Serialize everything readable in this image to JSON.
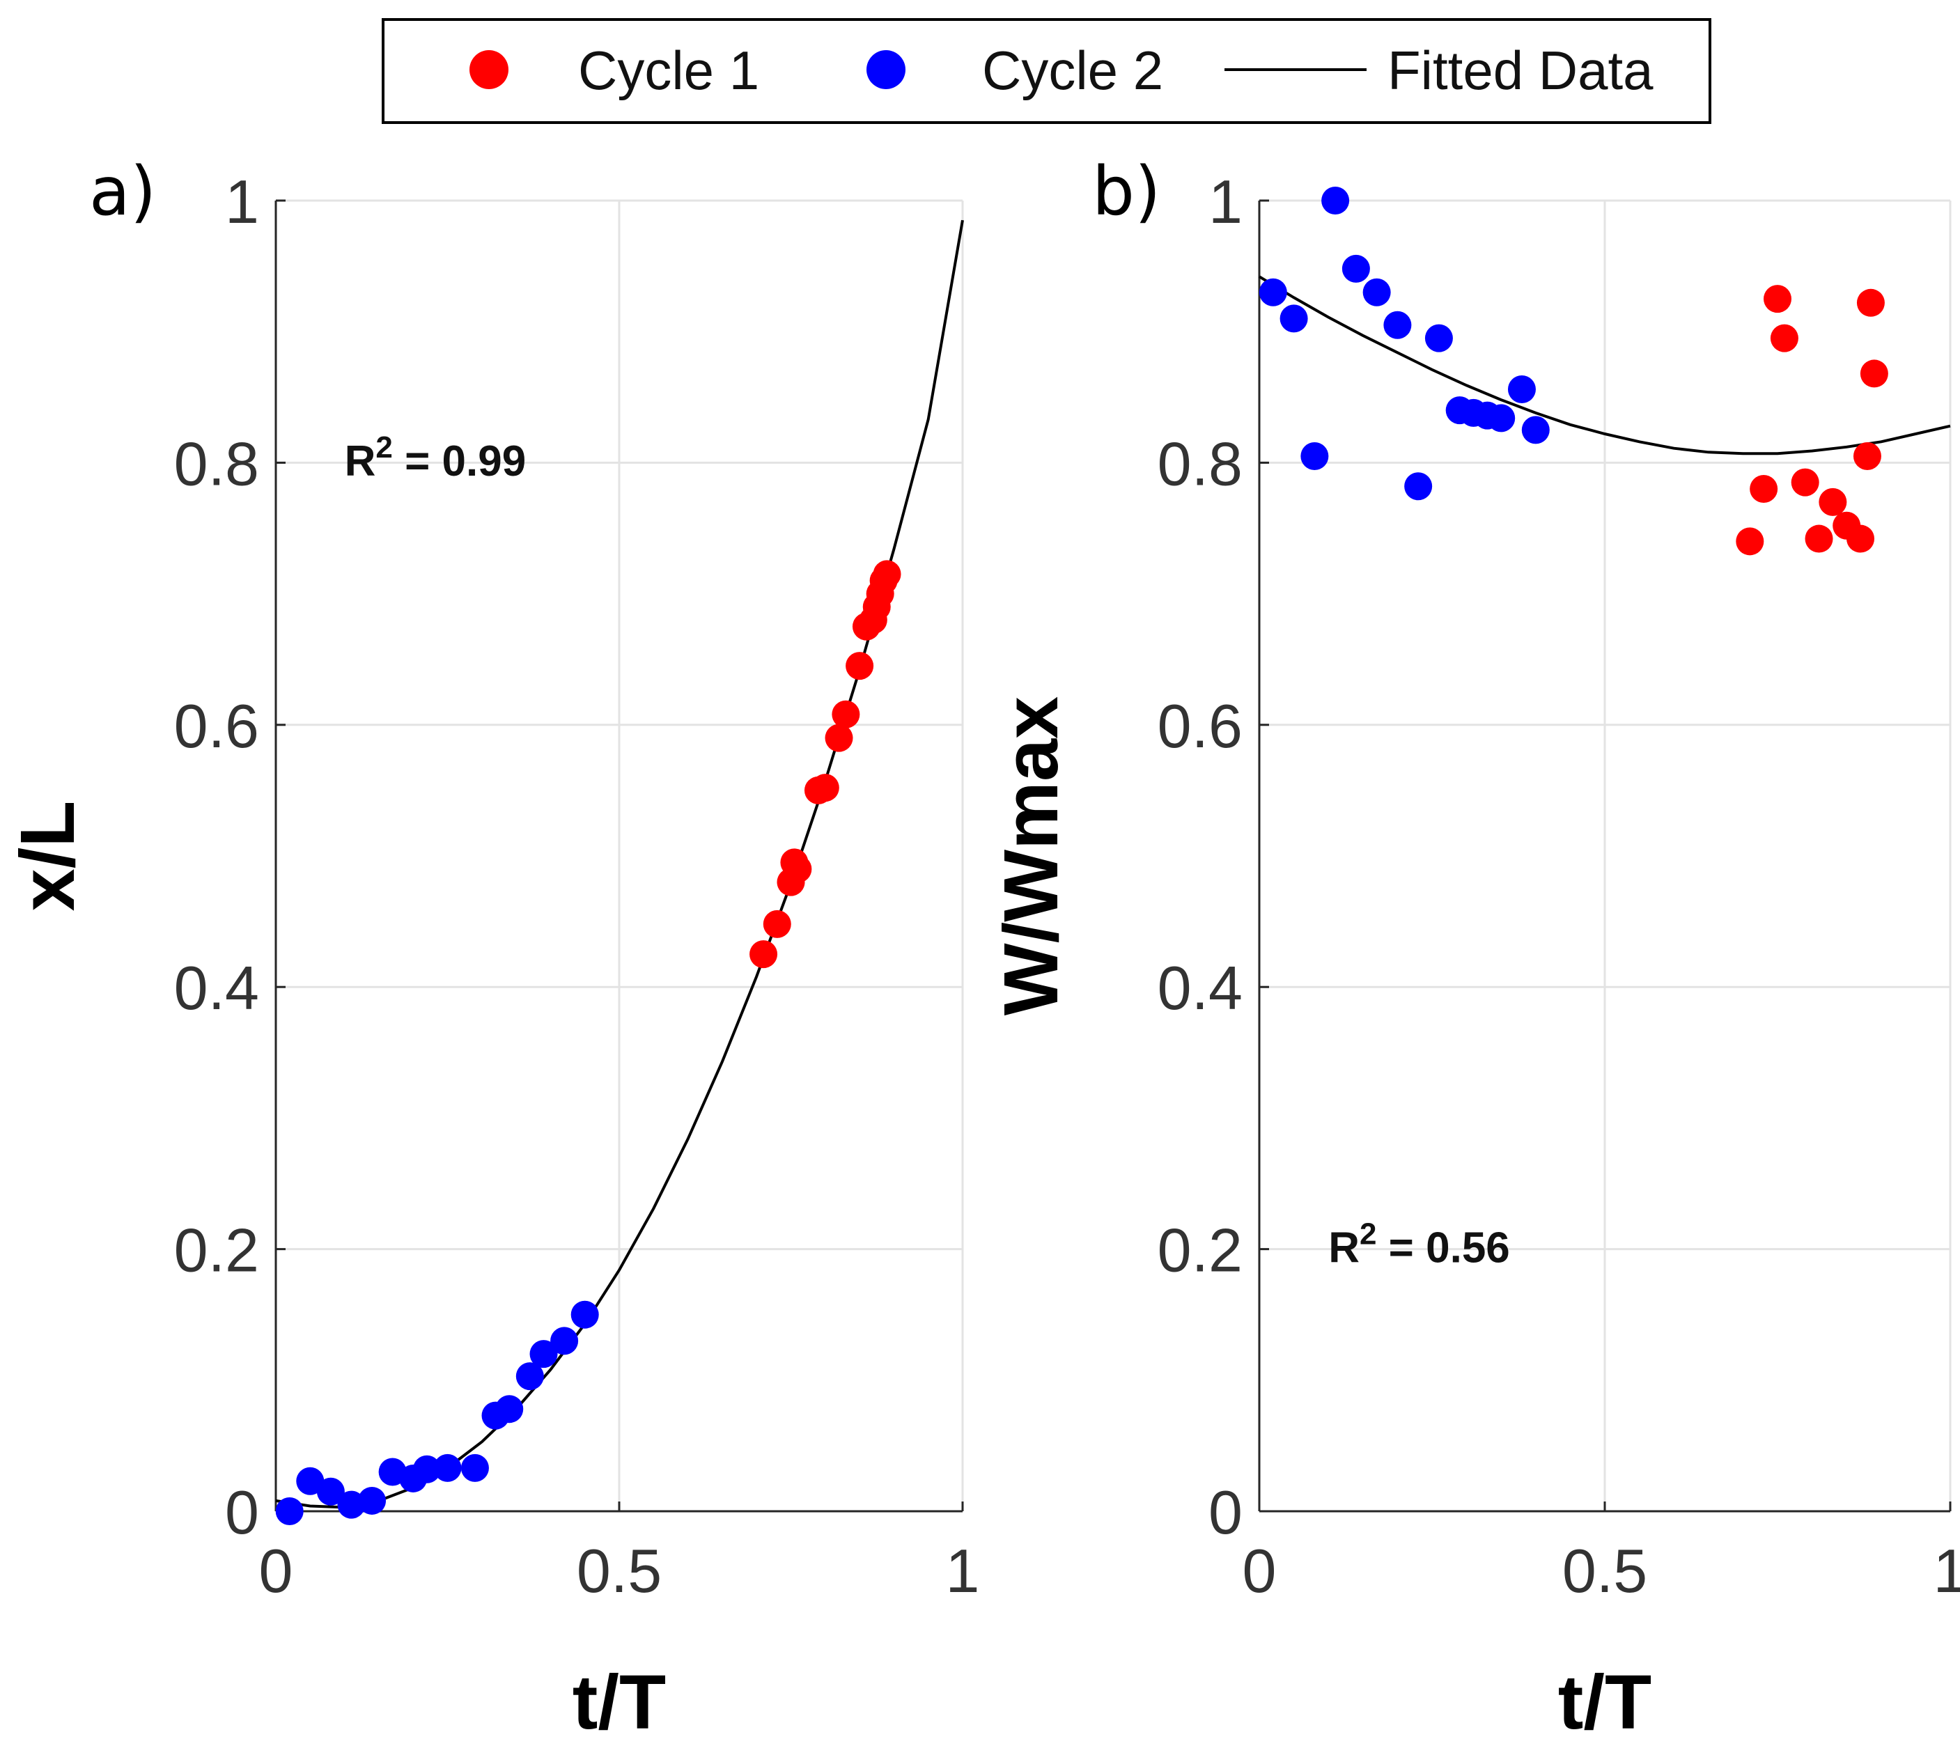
{
  "legend": {
    "entries": [
      {
        "label": "Cycle 1",
        "kind": "marker",
        "color": "#ff0000"
      },
      {
        "label": "Cycle 2",
        "kind": "marker",
        "color": "#0000ff"
      },
      {
        "label": "Fitted Data",
        "kind": "line",
        "color": "#000000"
      }
    ]
  },
  "chart_data": [
    {
      "type": "scatter",
      "panel_label": "a)",
      "xlabel": "t/T",
      "ylabel": "x/L",
      "xlim": [
        0,
        1
      ],
      "ylim": [
        0,
        1
      ],
      "xticks": [
        0,
        0.5,
        1
      ],
      "xtick_labels": [
        "0",
        "0.5",
        "1"
      ],
      "yticks": [
        0,
        0.2,
        0.4,
        0.6,
        0.8,
        1
      ],
      "ytick_labels": [
        "0",
        "0.2",
        "0.4",
        "0.6",
        "0.8",
        "1"
      ],
      "grid": true,
      "annotation": {
        "base": "R",
        "sup": "2",
        "rest": " = 0.99",
        "x": 0.1,
        "y": 0.79
      },
      "series": [
        {
          "name": "Cycle 1",
          "color": "#ff0000",
          "x": [
            0.71,
            0.73,
            0.75,
            0.76,
            0.755,
            0.79,
            0.8,
            0.82,
            0.83,
            0.85,
            0.86,
            0.87,
            0.875,
            0.88,
            0.89,
            0.885
          ],
          "y": [
            0.425,
            0.448,
            0.48,
            0.49,
            0.495,
            0.55,
            0.552,
            0.59,
            0.608,
            0.645,
            0.675,
            0.68,
            0.69,
            0.7,
            0.715,
            0.71
          ]
        },
        {
          "name": "Cycle 2",
          "color": "#0000ff",
          "x": [
            0.02,
            0.05,
            0.08,
            0.11,
            0.14,
            0.17,
            0.2,
            0.22,
            0.25,
            0.29,
            0.32,
            0.34,
            0.37,
            0.39,
            0.42,
            0.45
          ],
          "y": [
            0.0,
            0.023,
            0.015,
            0.005,
            0.008,
            0.03,
            0.025,
            0.032,
            0.033,
            0.033,
            0.073,
            0.078,
            0.103,
            0.12,
            0.13,
            0.15
          ]
        },
        {
          "name": "Fitted Data",
          "color": "#000000",
          "kind": "line",
          "x": [
            0,
            0.05,
            0.1,
            0.15,
            0.2,
            0.25,
            0.3,
            0.35,
            0.4,
            0.45,
            0.5,
            0.55,
            0.6,
            0.65,
            0.7,
            0.75,
            0.8,
            0.85,
            0.9,
            0.95,
            1.0
          ],
          "y": [
            0.008,
            0.004,
            0.003,
            0.008,
            0.018,
            0.033,
            0.053,
            0.078,
            0.108,
            0.143,
            0.184,
            0.231,
            0.284,
            0.343,
            0.408,
            0.479,
            0.557,
            0.642,
            0.734,
            0.833,
            0.985
          ]
        }
      ]
    },
    {
      "type": "scatter",
      "panel_label": "b)",
      "xlabel": "t/T",
      "ylabel": "W/Wmax",
      "xlim": [
        0,
        1
      ],
      "ylim": [
        0,
        1
      ],
      "xticks": [
        0,
        0.5,
        1
      ],
      "xtick_labels": [
        "0",
        "0.5",
        "1"
      ],
      "yticks": [
        0,
        0.2,
        0.4,
        0.6,
        0.8,
        1
      ],
      "ytick_labels": [
        "0",
        "0.2",
        "0.4",
        "0.6",
        "0.8",
        "1"
      ],
      "grid": true,
      "annotation": {
        "base": "R",
        "sup": "2",
        "rest": " = 0.56",
        "x": 0.1,
        "y": 0.19
      },
      "series": [
        {
          "name": "Cycle 1",
          "color": "#ff0000",
          "x": [
            0.71,
            0.73,
            0.75,
            0.76,
            0.79,
            0.81,
            0.83,
            0.85,
            0.87,
            0.88,
            0.89,
            0.885
          ],
          "y": [
            0.74,
            0.78,
            0.925,
            0.895,
            0.785,
            0.742,
            0.77,
            0.752,
            0.742,
            0.805,
            0.868,
            0.922
          ]
        },
        {
          "name": "Cycle 2",
          "color": "#0000ff",
          "x": [
            0.02,
            0.05,
            0.08,
            0.11,
            0.14,
            0.17,
            0.2,
            0.23,
            0.26,
            0.29,
            0.31,
            0.33,
            0.35,
            0.38,
            0.4
          ],
          "y": [
            0.93,
            0.91,
            0.805,
            1.0,
            0.948,
            0.93,
            0.905,
            0.782,
            0.895,
            0.84,
            0.838,
            0.836,
            0.834,
            0.856,
            0.825
          ]
        },
        {
          "name": "Fitted Data",
          "color": "#000000",
          "kind": "line",
          "x": [
            0,
            0.05,
            0.1,
            0.15,
            0.2,
            0.25,
            0.3,
            0.35,
            0.4,
            0.45,
            0.5,
            0.55,
            0.6,
            0.65,
            0.7,
            0.75,
            0.8,
            0.85,
            0.9,
            0.95,
            1.0
          ],
          "y": [
            0.942,
            0.926,
            0.911,
            0.897,
            0.884,
            0.871,
            0.859,
            0.848,
            0.838,
            0.829,
            0.822,
            0.816,
            0.811,
            0.808,
            0.807,
            0.807,
            0.809,
            0.812,
            0.816,
            0.822,
            0.828
          ]
        }
      ]
    }
  ]
}
